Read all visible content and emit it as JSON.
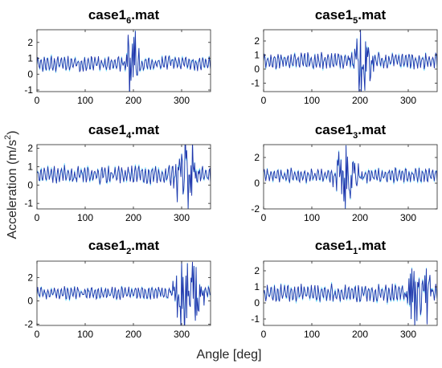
{
  "figure": {
    "xlabel": "Angle [deg]",
    "ylabel_main": "Acceleration (m/s",
    "ylabel_sup": "2",
    "ylabel_close": ")",
    "series_colors": [
      "#80e6ff",
      "#2233aa"
    ]
  },
  "chart_data": [
    {
      "type": "line",
      "title_main": "case1",
      "title_sub": "6",
      "title_tail": ".mat",
      "xlim": [
        0,
        360
      ],
      "ylim": [
        -1.1,
        2.8
      ],
      "xticks": [
        0,
        100,
        200,
        300
      ],
      "yticks": [
        -1,
        0,
        1,
        2
      ],
      "x_step": 1.5,
      "y_mean": 0.65,
      "noise_amp": 0.35,
      "bursts": [
        {
          "center": 195,
          "width": 14,
          "amp": 1.9
        }
      ],
      "seed": 11
    },
    {
      "type": "line",
      "title_main": "case1",
      "title_sub": "5",
      "title_tail": ".mat",
      "xlim": [
        0,
        360
      ],
      "ylim": [
        -1.6,
        2.8
      ],
      "xticks": [
        0,
        100,
        200,
        300
      ],
      "yticks": [
        -1,
        0,
        1,
        2
      ],
      "x_step": 1.5,
      "y_mean": 0.6,
      "noise_amp": 0.4,
      "bursts": [
        {
          "center": 205,
          "width": 18,
          "amp": 2.2
        }
      ],
      "seed": 23
    },
    {
      "type": "line",
      "title_main": "case1",
      "title_sub": "4",
      "title_tail": ".mat",
      "xlim": [
        0,
        360
      ],
      "ylim": [
        -1.3,
        2.2
      ],
      "xticks": [
        0,
        100,
        200,
        300
      ],
      "yticks": [
        -1,
        0,
        1,
        2
      ],
      "x_step": 1.5,
      "y_mean": 0.55,
      "noise_amp": 0.35,
      "bursts": [
        {
          "center": 310,
          "width": 22,
          "amp": 1.6
        }
      ],
      "seed": 37
    },
    {
      "type": "line",
      "title_main": "case1",
      "title_sub": "3",
      "title_tail": ".mat",
      "xlim": [
        0,
        360
      ],
      "ylim": [
        -2.0,
        3.0
      ],
      "xticks": [
        0,
        100,
        200,
        300
      ],
      "yticks": [
        -2,
        0,
        2
      ],
      "x_step": 1.5,
      "y_mean": 0.6,
      "noise_amp": 0.4,
      "bursts": [
        {
          "center": 170,
          "width": 22,
          "amp": 2.2
        }
      ],
      "seed": 41
    },
    {
      "type": "line",
      "title_main": "case1",
      "title_sub": "2",
      "title_tail": ".mat",
      "xlim": [
        0,
        360
      ],
      "ylim": [
        -2.1,
        3.4
      ],
      "xticks": [
        0,
        100,
        200,
        300
      ],
      "yticks": [
        -2,
        0,
        2
      ],
      "x_step": 1.5,
      "y_mean": 0.7,
      "noise_amp": 0.4,
      "bursts": [
        {
          "center": 315,
          "width": 30,
          "amp": 2.6
        }
      ],
      "seed": 53
    },
    {
      "type": "line",
      "title_main": "case1",
      "title_sub": "1",
      "title_tail": ".mat",
      "xlim": [
        0,
        360
      ],
      "ylim": [
        -1.4,
        2.6
      ],
      "xticks": [
        0,
        100,
        200,
        300
      ],
      "yticks": [
        -1,
        0,
        1,
        2
      ],
      "x_step": 1.5,
      "y_mean": 0.6,
      "noise_amp": 0.4,
      "bursts": [
        {
          "center": 322,
          "width": 22,
          "amp": 2.0
        }
      ],
      "seed": 67
    }
  ]
}
